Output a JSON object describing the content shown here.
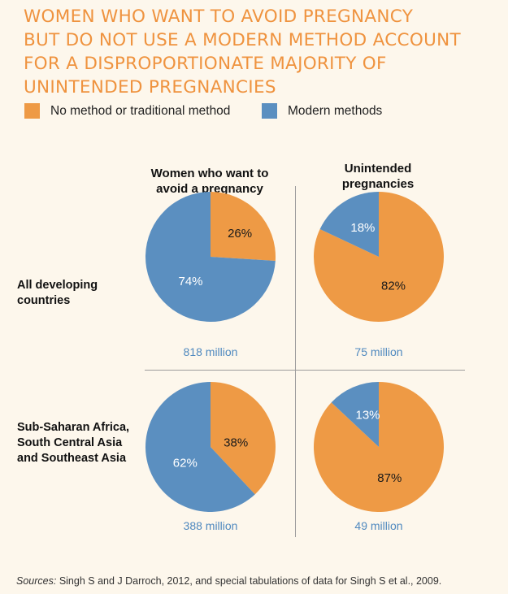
{
  "title_lines": [
    "WOMEN WHO WANT TO AVOID PREGNANCY",
    "BUT DO NOT USE A MODERN METHOD ACCOUNT",
    "FOR A DISPROPORTIONATE MAJORITY OF",
    "UNINTENDED PREGNANCIES"
  ],
  "legend": [
    {
      "label": "No method or traditional method",
      "color": "#ee9a45"
    },
    {
      "label": "Modern methods",
      "color": "#5b8fc0"
    }
  ],
  "columns": [
    {
      "line1": "Women who want to",
      "line2": "avoid a pregnancy"
    },
    {
      "line1": "Unintended",
      "line2": "pregnancies"
    }
  ],
  "rows": [
    {
      "lines": [
        "All developing",
        "countries"
      ]
    },
    {
      "lines": [
        "Sub-Saharan Africa,",
        "South Central Asia",
        "and Southeast Asia"
      ]
    }
  ],
  "chart_data": [
    {
      "type": "pie",
      "row": "All developing countries",
      "column": "Women who want to avoid a pregnancy",
      "slices": [
        {
          "label": "No method or traditional method",
          "value": 26,
          "text": "26%"
        },
        {
          "label": "Modern methods",
          "value": 74,
          "text": "74%"
        }
      ],
      "total_label": "818 million"
    },
    {
      "type": "pie",
      "row": "All developing countries",
      "column": "Unintended pregnancies",
      "slices": [
        {
          "label": "No method or traditional method",
          "value": 82,
          "text": "82%"
        },
        {
          "label": "Modern methods",
          "value": 18,
          "text": "18%"
        }
      ],
      "total_label": "75 million"
    },
    {
      "type": "pie",
      "row": "Sub-Saharan Africa, South Central Asia and Southeast Asia",
      "column": "Women who want to avoid a pregnancy",
      "slices": [
        {
          "label": "No method or traditional method",
          "value": 38,
          "text": "38%"
        },
        {
          "label": "Modern methods",
          "value": 62,
          "text": "62%"
        }
      ],
      "total_label": "388 million"
    },
    {
      "type": "pie",
      "row": "Sub-Saharan Africa, South Central Asia and Southeast Asia",
      "column": "Unintended pregnancies",
      "slices": [
        {
          "label": "No method or traditional method",
          "value": 87,
          "text": "87%"
        },
        {
          "label": "Modern methods",
          "value": 13,
          "text": "13%"
        }
      ],
      "total_label": "49 million"
    }
  ],
  "sources": {
    "prefix": "Sources:",
    "text": " Singh S and J Darroch, 2012, and special tabulations of data for Singh S et al., 2009."
  }
}
